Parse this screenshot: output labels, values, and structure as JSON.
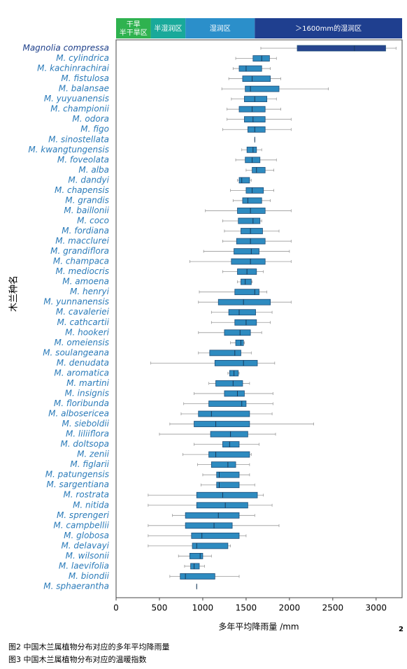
{
  "chart_data": {
    "type": "box",
    "xlabel": "多年平均降雨量 /mm",
    "ylabel": "木兰种名",
    "page_number": "2",
    "captions": [
      "图2  中国木兰属植物分布对应的多年平均降雨量",
      "图3  中国木兰属植物分布对应的温暖指数"
    ],
    "zones": [
      {
        "label": [
          "干旱",
          "半干旱区"
        ],
        "from": 0,
        "to": 400,
        "color": "#2fb24f"
      },
      {
        "label": "半湿润区",
        "from": 400,
        "to": 800,
        "color": "#19a99a"
      },
      {
        "label": "湿润区",
        "from": 800,
        "to": 1600,
        "color": "#2b8fca"
      },
      {
        "label": "＞1600mm的湿润区",
        "from": 1600,
        "to": 3300,
        "color": "#1f3f8f"
      }
    ],
    "xlim": [
      0,
      3300
    ],
    "xticks": [
      0,
      500,
      1000,
      1500,
      2000,
      2500,
      3000
    ],
    "categories": [
      "Magnolia compressa",
      "M. cylindrica",
      "M. kachinrachirai",
      "M. fistulosa",
      "M. balansae",
      "M. yuyuanensis",
      "M. championii",
      "M. odora",
      "M. figo",
      "M. sinostellata",
      "M. kwangtungensis",
      "M. foveolata",
      "M. alba",
      "M. dandyi",
      "M. chapensis",
      "M. grandis",
      "M. baillonii",
      "M. coco",
      "M. fordiana",
      "M. macclurei",
      "M. grandiflora",
      "M. champaca",
      "M. mediocris",
      "M. amoena",
      "M. henryi",
      "M. yunnanensis",
      "M. cavaleriei",
      "M. cathcartii",
      "M. hookeri",
      "M. omeiensis",
      "M. soulangeana",
      "M. denudata",
      "M. aromatica",
      "M. martini",
      "M. insignis",
      "M. floribunda",
      "M. albosericea",
      "M. sieboldii",
      "M. liliiflora",
      "M. doltsopa",
      "M. zenii",
      "M. figlarii",
      "M. patungensis",
      "M. sargentiana",
      "M. rostrata",
      "M. nitida",
      "M. sprengeri",
      "M. campbellii",
      "M. globosa",
      "M. delavayi",
      "M. wilsonii",
      "M. laevifolia",
      "M. biondii",
      "M. sphaerantha"
    ],
    "label_colors": [
      "#1d3f8a",
      "#2b7bb9"
    ],
    "box_colors": [
      "#27458f",
      "#2e8bc0"
    ],
    "min": [
      1670,
      1380,
      1350,
      1300,
      1220,
      1330,
      1280,
      1280,
      1230,
      1600,
      1450,
      1380,
      1500,
      1400,
      1320,
      1350,
      1030,
      1230,
      1250,
      1230,
      1010,
      850,
      1230,
      1400,
      960,
      950,
      1100,
      1100,
      950,
      1320,
      950,
      400,
      1290,
      1070,
      900,
      780,
      750,
      620,
      500,
      900,
      770,
      940,
      1000,
      980,
      370,
      370,
      650,
      370,
      370,
      370,
      720,
      790,
      620,
      930
    ],
    "q1": [
      2090,
      1580,
      1420,
      1460,
      1490,
      1480,
      1420,
      1480,
      1520,
      1600,
      1510,
      1490,
      1570,
      1420,
      1500,
      1460,
      1400,
      1410,
      1440,
      1390,
      1360,
      1330,
      1400,
      1440,
      1370,
      1180,
      1300,
      1370,
      1250,
      1380,
      1080,
      1140,
      1310,
      1150,
      1250,
      1070,
      950,
      900,
      1090,
      1230,
      1070,
      1100,
      1160,
      1160,
      930,
      930,
      800,
      800,
      870,
      880,
      850,
      860,
      740,
      930
    ],
    "median": [
      2750,
      1680,
      1500,
      1570,
      1550,
      1600,
      1570,
      1580,
      1600,
      1600,
      1580,
      1570,
      1620,
      1450,
      1570,
      1520,
      1550,
      1580,
      1550,
      1550,
      1560,
      1550,
      1510,
      1490,
      1600,
      1470,
      1420,
      1500,
      1430,
      1440,
      1370,
      1470,
      1360,
      1350,
      1400,
      1450,
      1100,
      1150,
      1320,
      1310,
      1150,
      1290,
      1190,
      1190,
      1230,
      1260,
      1180,
      1130,
      990,
      930,
      970,
      900,
      800,
      930
    ],
    "q3": [
      3110,
      1770,
      1680,
      1780,
      1880,
      1740,
      1720,
      1720,
      1720,
      1600,
      1620,
      1660,
      1720,
      1540,
      1700,
      1680,
      1720,
      1660,
      1690,
      1720,
      1650,
      1720,
      1620,
      1560,
      1650,
      1780,
      1610,
      1620,
      1550,
      1470,
      1440,
      1630,
      1410,
      1460,
      1480,
      1500,
      1540,
      1540,
      1520,
      1420,
      1540,
      1380,
      1420,
      1420,
      1630,
      1520,
      1420,
      1340,
      1420,
      1290,
      1000,
      960,
      1140,
      930
    ],
    "max": [
      3230,
      1850,
      1780,
      1900,
      2450,
      1850,
      1900,
      2020,
      2020,
      1600,
      1680,
      1850,
      1820,
      1560,
      1820,
      1780,
      2020,
      1680,
      1880,
      2020,
      2000,
      2020,
      1700,
      1570,
      1740,
      2020,
      1800,
      1780,
      1680,
      1480,
      1560,
      1830,
      1420,
      1540,
      1810,
      1810,
      1800,
      2280,
      1840,
      1650,
      1560,
      1540,
      1540,
      1600,
      1700,
      1800,
      1600,
      1880,
      1500,
      1320,
      1100,
      1020,
      1420,
      930
    ]
  }
}
